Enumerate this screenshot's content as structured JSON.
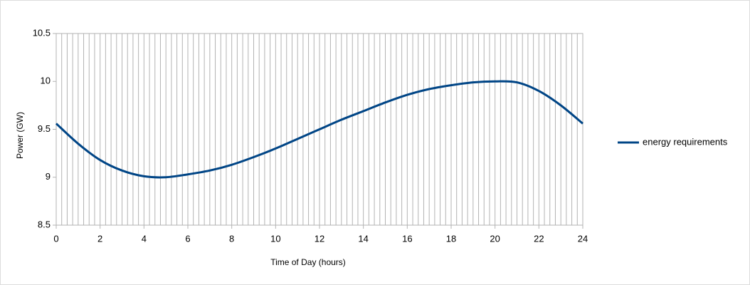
{
  "chart_data": {
    "type": "line",
    "x_label": "Time of Day (hours)",
    "y_label": "Power (GW)",
    "x": [
      0,
      1,
      2,
      3,
      4,
      5,
      6,
      7,
      8,
      9,
      10,
      11,
      12,
      13,
      14,
      15,
      16,
      17,
      18,
      19,
      20,
      21,
      22,
      23,
      24
    ],
    "series": [
      {
        "name": "energy requirements",
        "color": "#004586",
        "values": [
          9.56,
          9.35,
          9.18,
          9.07,
          9.01,
          9.0,
          9.03,
          9.07,
          9.13,
          9.21,
          9.3,
          9.4,
          9.5,
          9.6,
          9.69,
          9.78,
          9.86,
          9.92,
          9.96,
          9.99,
          10.0,
          9.99,
          9.9,
          9.75,
          9.56
        ]
      }
    ],
    "xlim": [
      0,
      24
    ],
    "xticks": [
      0,
      2,
      4,
      6,
      8,
      10,
      12,
      14,
      16,
      18,
      20,
      22,
      24
    ],
    "ylim": [
      8.5,
      10.5
    ],
    "yticks": [
      8.5,
      9,
      9.5,
      10,
      10.5
    ],
    "x_minor_grid_step": 0.25,
    "legend": "right"
  }
}
